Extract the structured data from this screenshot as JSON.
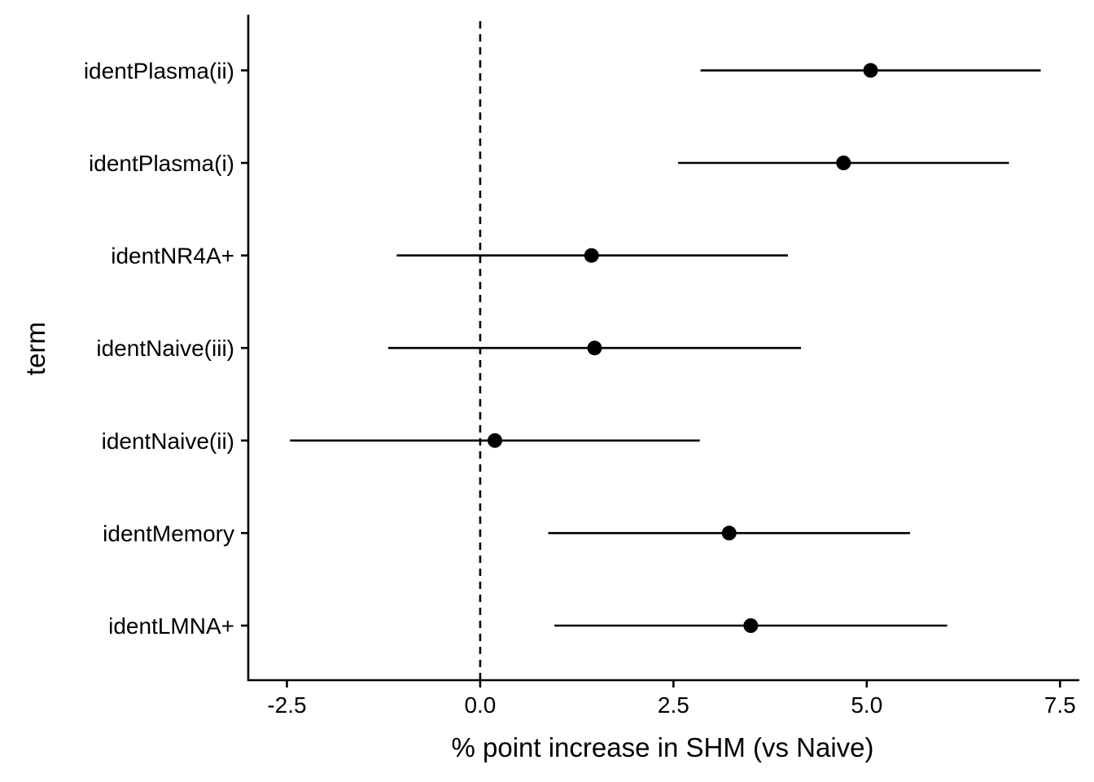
{
  "chart_data": {
    "type": "scatter",
    "subtype": "point-with-horizontal-interval",
    "xlabel": "% point increase in SHM (vs Naive)",
    "ylabel": "term",
    "xlim": [
      -3.0,
      7.75
    ],
    "xticks": [
      -2.5,
      0.0,
      2.5,
      5.0,
      7.5
    ],
    "xtick_labels": [
      "-2.5",
      "0.0",
      "2.5",
      "5.0",
      "7.5"
    ],
    "reference_line": {
      "x": 0,
      "style": "dashed"
    },
    "categories": [
      "identLMNA+",
      "identMemory",
      "identNaive(ii)",
      "identNaive(iii)",
      "identNR4A+",
      "identPlasma(i)",
      "identPlasma(ii)"
    ],
    "series": [
      {
        "estimate": [
          3.5,
          3.22,
          0.19,
          1.48,
          1.44,
          4.7,
          5.05
        ],
        "conf_low": [
          0.96,
          0.88,
          -2.46,
          -1.19,
          -1.08,
          2.56,
          2.85
        ],
        "conf_high": [
          6.04,
          5.56,
          2.84,
          4.15,
          3.98,
          6.84,
          7.25
        ]
      }
    ],
    "grid": false,
    "legend": "none"
  }
}
